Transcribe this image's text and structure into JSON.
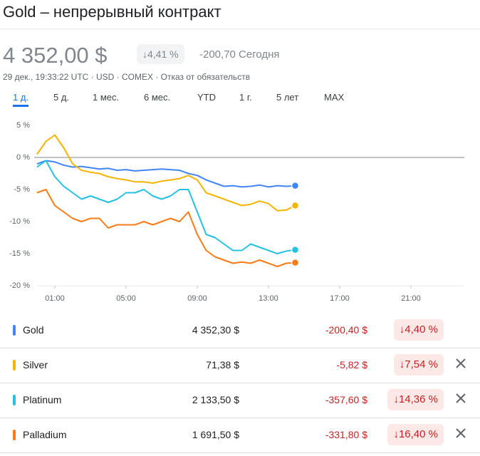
{
  "header": {
    "title": "Gold – непрерывный контракт",
    "price": "4 352,00 $",
    "change_pct": "4,41 %",
    "change_abs": "-200,70",
    "period": "Сегодня",
    "meta": "29 дек., 19:33:22 UTC · USD · COMEX · Отказ от обязательств"
  },
  "tabs": [
    "1 д.",
    "5 д.",
    "1 мес.",
    "6 мес.",
    "YTD",
    "1 г.",
    "5 лет",
    "MAX"
  ],
  "chart_data": {
    "type": "line",
    "x": [
      0,
      0.5,
      1,
      1.5,
      2,
      2.5,
      3,
      3.5,
      4,
      4.5,
      5,
      5.5,
      6,
      6.5,
      7,
      7.5,
      8,
      8.5,
      9,
      9.5,
      10,
      10.5,
      11,
      11.5,
      12,
      12.5,
      13,
      13.5,
      14,
      14.5
    ],
    "xlim": [
      0,
      24
    ],
    "xticks": [
      {
        "value": 1,
        "label": "01:00"
      },
      {
        "value": 5,
        "label": "05:00"
      },
      {
        "value": 9,
        "label": "09:00"
      },
      {
        "value": 13,
        "label": "13:00"
      },
      {
        "value": 17,
        "label": "17:00"
      },
      {
        "value": 21,
        "label": "21:00"
      }
    ],
    "ylim": [
      -20,
      5
    ],
    "yticks": [
      {
        "value": 5,
        "label": "5 %"
      },
      {
        "value": 0,
        "label": "0 %"
      },
      {
        "value": -5,
        "label": "-5 %"
      },
      {
        "value": -10,
        "label": "-10 %"
      },
      {
        "value": -15,
        "label": "-15 %"
      },
      {
        "value": -20,
        "label": "-20 %"
      }
    ],
    "series": [
      {
        "name": "Gold",
        "color": "#4285f4",
        "values": [
          -1.0,
          -0.5,
          -0.7,
          -1.2,
          -1.5,
          -1.4,
          -1.6,
          -1.8,
          -1.7,
          -2.0,
          -1.9,
          -2.1,
          -2.0,
          -1.9,
          -1.8,
          -1.9,
          -2.0,
          -2.5,
          -2.8,
          -3.5,
          -4.0,
          -4.5,
          -4.4,
          -4.6,
          -4.5,
          -4.3,
          -4.6,
          -4.4,
          -4.5,
          -4.4
        ]
      },
      {
        "name": "Silver",
        "color": "#f4b400",
        "values": [
          0.5,
          2.5,
          3.5,
          1.5,
          -1.0,
          -2.0,
          -2.3,
          -2.5,
          -3.0,
          -3.3,
          -3.5,
          -3.8,
          -3.8,
          -4.0,
          -3.7,
          -3.5,
          -3.3,
          -2.8,
          -3.5,
          -5.5,
          -6.0,
          -6.5,
          -7.0,
          -7.5,
          -7.3,
          -6.8,
          -7.2,
          -8.3,
          -8.2,
          -7.5
        ]
      },
      {
        "name": "Platinum",
        "color": "#24c1e0",
        "values": [
          -1.5,
          -0.5,
          -3.0,
          -4.5,
          -5.5,
          -6.5,
          -6.0,
          -6.5,
          -7.0,
          -6.5,
          -5.5,
          -5.5,
          -5.0,
          -6.0,
          -6.5,
          -6.0,
          -5.0,
          -5.0,
          -8.5,
          -12.0,
          -12.5,
          -13.5,
          -14.5,
          -14.5,
          -13.5,
          -14.0,
          -14.5,
          -15.0,
          -14.6,
          -14.4
        ]
      },
      {
        "name": "Palladium",
        "color": "#fa7b17",
        "values": [
          -5.5,
          -5.0,
          -7.5,
          -8.5,
          -9.5,
          -10.0,
          -9.5,
          -9.5,
          -11.0,
          -10.5,
          -10.5,
          -10.5,
          -10.0,
          -10.5,
          -10.0,
          -9.5,
          -10.0,
          -8.5,
          -12.0,
          -14.5,
          -15.5,
          -16.0,
          -16.5,
          -16.3,
          -16.5,
          -16.0,
          -16.5,
          -17.0,
          -16.5,
          -16.4
        ]
      }
    ]
  },
  "table": {
    "rows": [
      {
        "name": "Gold",
        "price": "4 352,30 $",
        "change": "-200,40 $",
        "change_pct": "4,40 %"
      },
      {
        "name": "Silver",
        "price": "71,38 $",
        "change": "-5,82 $",
        "change_pct": "7,54 %"
      },
      {
        "name": "Platinum",
        "price": "2 133,50 $",
        "change": "-357,60 $",
        "change_pct": "14,36 %"
      },
      {
        "name": "Palladium",
        "price": "1 691,50 $",
        "change": "-331,80 $",
        "change_pct": "16,40 %"
      }
    ]
  }
}
